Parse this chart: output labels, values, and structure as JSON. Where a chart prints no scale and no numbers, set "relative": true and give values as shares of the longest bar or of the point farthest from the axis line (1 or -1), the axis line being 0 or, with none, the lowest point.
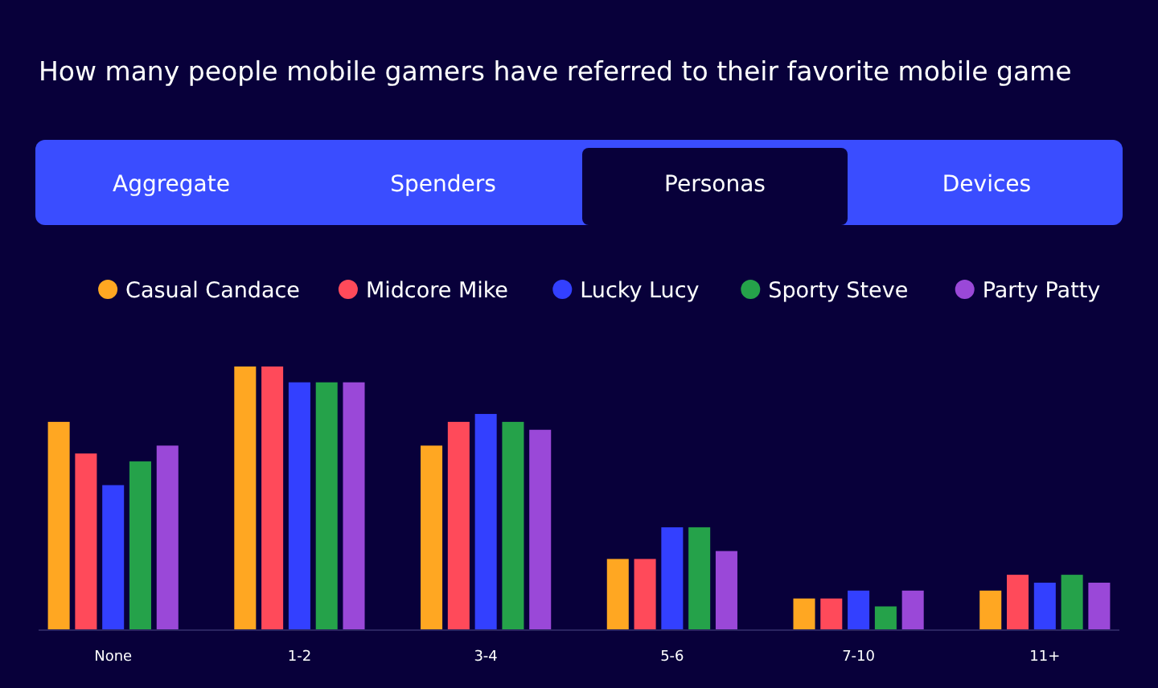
{
  "chart_data": {
    "type": "bar",
    "title": "How many people mobile gamers have referred to their favorite mobile game",
    "categories": [
      "None",
      "1-2",
      "3-4",
      "5-6",
      "7-10",
      "11+"
    ],
    "relative": true,
    "legend": "top",
    "annotations": [
      "Aggregate",
      "Spenders",
      "Personas",
      "Devices"
    ],
    "series": [
      {
        "name": "Casual Candace",
        "color": "#ffa722",
        "values": [
          0.79,
          1,
          0.7,
          0.27,
          0.12,
          0.15
        ]
      },
      {
        "name": "Midcore Mike",
        "color": "#ff4a5a",
        "values": [
          0.67,
          1,
          0.79,
          0.27,
          0.12,
          0.21
        ]
      },
      {
        "name": "Lucky Lucy",
        "color": "#3340ff",
        "values": [
          0.55,
          0.94,
          0.82,
          0.39,
          0.15,
          0.18
        ]
      },
      {
        "name": "Sporty Steve",
        "color": "#25a24a",
        "values": [
          0.64,
          0.94,
          0.79,
          0.39,
          0.09,
          0.21
        ]
      },
      {
        "name": "Party Patty",
        "color": "#9a48d8",
        "values": [
          0.7,
          0.94,
          0.76,
          0.3,
          0.15,
          0.18
        ]
      }
    ]
  }
}
